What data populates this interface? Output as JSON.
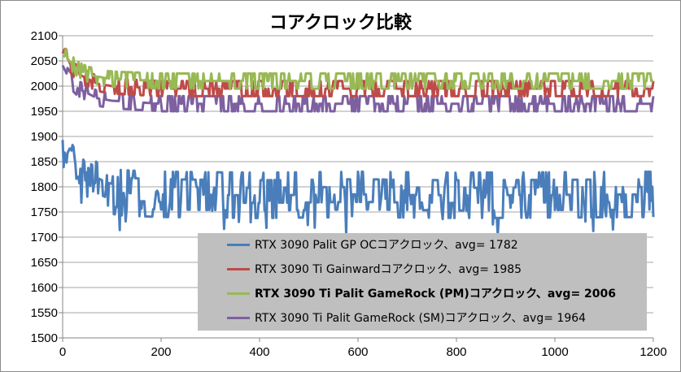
{
  "chart_data": {
    "type": "line",
    "title": "コアクロック比較",
    "xlabel": "",
    "ylabel": "",
    "xlim": [
      0,
      1200
    ],
    "ylim": [
      1500,
      2100
    ],
    "xticks": [
      0,
      200,
      400,
      600,
      800,
      1000,
      1200
    ],
    "yticks": [
      1500,
      1550,
      1600,
      1650,
      1700,
      1750,
      1800,
      1850,
      1900,
      1950,
      2000,
      2050,
      2100
    ],
    "grid": "horizontal",
    "legend_position": "lower-right",
    "series": [
      {
        "name": "RTX 3090 Palit GP OCコアクロック、avg= 1782",
        "color": "#4a7ebb",
        "bold": false,
        "levels": [
          1740,
          1755,
          1770,
          1785,
          1800,
          1815,
          1830
        ],
        "x": [
          0,
          3,
          8,
          15,
          25,
          35,
          45,
          55,
          70,
          90,
          120,
          200,
          400,
          600,
          800,
          1000,
          1200
        ],
        "y": [
          1890,
          1870,
          1845,
          1860,
          1840,
          1850,
          1830,
          1815,
          1800,
          1790,
          1785,
          1782,
          1780,
          1782,
          1780,
          1781,
          1782
        ]
      },
      {
        "name": "RTX 3090 Ti Gainwardコアクロック、avg= 1985",
        "color": "#be4b48",
        "bold": false,
        "levels": [
          1980,
          1995,
          2010
        ],
        "x": [
          0,
          5,
          10,
          20,
          30,
          50,
          70,
          100,
          200,
          400,
          600,
          800,
          1000,
          1200
        ],
        "y": [
          2040,
          2050,
          2045,
          2025,
          2015,
          2005,
          1995,
          1990,
          1985,
          1985,
          1985,
          1985,
          1985,
          1985
        ]
      },
      {
        "name": "RTX 3090 Ti Palit GameRock (PM)コアクロック、avg= 2006",
        "color": "#98b954",
        "bold": true,
        "levels": [
          1995,
          2010,
          2025
        ],
        "x": [
          0,
          5,
          10,
          20,
          30,
          50,
          70,
          100,
          200,
          400,
          600,
          800,
          1000,
          1200
        ],
        "y": [
          2055,
          2055,
          2050,
          2040,
          2030,
          2020,
          2015,
          2010,
          2006,
          2006,
          2006,
          2006,
          2006,
          2006
        ]
      },
      {
        "name": "RTX 3090 Ti Palit GameRock (SM)コアクロック、avg= 1964",
        "color": "#7d60a0",
        "bold": false,
        "levels": [
          1950,
          1965,
          1980
        ],
        "x": [
          0,
          5,
          10,
          20,
          30,
          50,
          70,
          100,
          200,
          400,
          600,
          800,
          1000,
          1200
        ],
        "y": [
          2040,
          2030,
          2020,
          2005,
          1995,
          1985,
          1975,
          1970,
          1964,
          1964,
          1964,
          1964,
          1964,
          1964
        ]
      }
    ]
  }
}
